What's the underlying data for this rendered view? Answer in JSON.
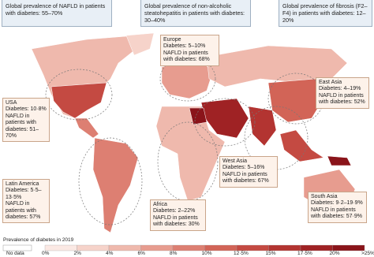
{
  "header_boxes": [
    {
      "text": "Global prevalence of NAFLD in patients with diabetes: 55–70%"
    },
    {
      "text": "Global prevalence of non-alcoholic steatohepatitis in patients with diabetes: 30–40%"
    },
    {
      "text": "Global prevalence of fibrosis (F2–F4) in patients with diabetes: 12–20%"
    }
  ],
  "regions": [
    {
      "name": "Europe",
      "diabetes": "Diabetes: 5–10%",
      "nafld": "NAFLD in patients with diabetes: 68%"
    },
    {
      "name": "USA",
      "diabetes": "Diabetes: 10·8%",
      "nafld": "NAFLD in patients with diabetes: 51–70%"
    },
    {
      "name": "East Asia",
      "diabetes": "Diabetes: 4–19%",
      "nafld": "NAFLD in patients with diabetes: 52%"
    },
    {
      "name": "Latin America",
      "diabetes": "Diabetes: 5·5–13·5%",
      "nafld": "NAFLD in patients with diabetes: 57%"
    },
    {
      "name": "West Asia",
      "diabetes": "Diabetes: 5–16%",
      "nafld": "NAFLD in patients with diabetes: 67%"
    },
    {
      "name": "South Asia",
      "diabetes": "Diabetes: 9·2–19·9%",
      "nafld": "NAFLD in patients with diabetes: 57·9%"
    },
    {
      "name": "Africa",
      "diabetes": "Diabetes: 2–22%",
      "nafld": "NAFLD in patients with diabetes: 30%"
    }
  ],
  "legend": {
    "title": "Prevalence of diabetes in 2019",
    "no_data": "No data",
    "labels": [
      "0%",
      "2%",
      "4%",
      "6%",
      "8%",
      "10%",
      "12·5%",
      "15%",
      "17·5%",
      "20%",
      ">25%"
    ],
    "colors": [
      "#fbe9e4",
      "#f6d3ca",
      "#efb9ad",
      "#e79c8f",
      "#dd7f72",
      "#d26457",
      "#c44a42",
      "#b33431",
      "#9f2224",
      "#8a141a"
    ],
    "no_data_color": "#ffffff"
  }
}
